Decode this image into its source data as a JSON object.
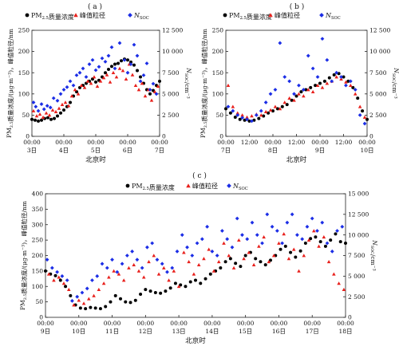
{
  "chart_data": [
    {
      "type": "scatter",
      "panel_label": "( a )",
      "xlabel": "北京时",
      "ylabel": "PM2.5质量浓度/(μg·m⁻³)，峰值粒径/nm",
      "ylabel_right": "N_SOC/cm⁻³",
      "x_tick_labels": [
        {
          "time": "00:00",
          "day": "3日"
        },
        {
          "time": "00:00",
          "day": "4日"
        },
        {
          "time": "00:00",
          "day": "5日"
        },
        {
          "time": "00:00",
          "day": "6日"
        },
        {
          "time": "00:00",
          "day": "7日"
        }
      ],
      "xlim": [
        0,
        4
      ],
      "ylim": [
        0,
        250
      ],
      "ylim_right": [
        0,
        12500
      ],
      "y_ticks": [
        0,
        50,
        100,
        150,
        200,
        250
      ],
      "y_ticks_right": [
        0,
        2500,
        5000,
        7500,
        10000,
        12500
      ],
      "y_tick_labels_right": [
        "0",
        "2 500",
        "5 000",
        "7 500",
        "10 000",
        "12 500"
      ],
      "legend": [
        {
          "label": "PM2.5质量浓度",
          "marker": "circle",
          "color": "#000000"
        },
        {
          "label": "峰值粒径",
          "marker": "triangle",
          "color": "#e8201c"
        },
        {
          "label": "N_SOC",
          "marker": "diamond",
          "color": "#1c2ee6"
        }
      ],
      "series": [
        {
          "name": "PM2.5质量浓度",
          "axis": "left",
          "x": [
            0.0,
            0.1,
            0.2,
            0.3,
            0.4,
            0.5,
            0.6,
            0.7,
            0.8,
            0.9,
            1.0,
            1.1,
            1.2,
            1.3,
            1.4,
            1.5,
            1.6,
            1.7,
            1.8,
            1.9,
            2.0,
            2.1,
            2.2,
            2.3,
            2.4,
            2.5,
            2.6,
            2.7,
            2.8,
            2.9,
            3.0,
            3.1,
            3.2,
            3.3,
            3.4,
            3.5,
            3.6,
            3.7,
            3.8,
            3.9,
            4.0
          ],
          "y": [
            40,
            38,
            36,
            38,
            42,
            44,
            40,
            42,
            48,
            55,
            62,
            70,
            80,
            95,
            105,
            115,
            120,
            125,
            130,
            135,
            128,
            132,
            140,
            150,
            158,
            165,
            170,
            172,
            178,
            182,
            180,
            175,
            168,
            155,
            140,
            125,
            110,
            100,
            108,
            120,
            130
          ]
        },
        {
          "name": "峰值粒径",
          "axis": "left",
          "x": [
            0.05,
            0.15,
            0.25,
            0.35,
            0.45,
            0.55,
            0.65,
            0.75,
            0.85,
            0.95,
            1.05,
            1.15,
            1.25,
            1.35,
            1.45,
            1.55,
            1.65,
            1.75,
            1.85,
            1.95,
            2.05,
            2.15,
            2.25,
            2.35,
            2.45,
            2.55,
            2.65,
            2.75,
            2.85,
            2.95,
            3.05,
            3.15,
            3.25,
            3.35,
            3.45,
            3.55,
            3.65,
            3.75,
            3.85,
            3.95
          ],
          "y": [
            60,
            48,
            52,
            45,
            55,
            50,
            62,
            58,
            66,
            75,
            80,
            72,
            95,
            110,
            100,
            120,
            115,
            130,
            125,
            140,
            118,
            130,
            138,
            145,
            128,
            150,
            140,
            160,
            155,
            135,
            170,
            145,
            120,
            110,
            125,
            95,
            110,
            85,
            105,
            118
          ]
        },
        {
          "name": "N_SOC",
          "axis": "right",
          "x": [
            0.05,
            0.12,
            0.2,
            0.3,
            0.38,
            0.48,
            0.58,
            0.68,
            0.8,
            0.9,
            1.0,
            1.1,
            1.2,
            1.3,
            1.4,
            1.5,
            1.6,
            1.7,
            1.8,
            1.9,
            2.0,
            2.1,
            2.2,
            2.3,
            2.4,
            2.5,
            2.6,
            2.75,
            2.9,
            3.0,
            3.1,
            3.2,
            3.3,
            3.4,
            3.5,
            3.6,
            3.7,
            3.8,
            3.9
          ],
          "y": [
            4000,
            3500,
            3000,
            3800,
            3200,
            3600,
            3400,
            4500,
            4200,
            5000,
            5500,
            5800,
            6500,
            6000,
            7200,
            7500,
            8000,
            7000,
            8500,
            9000,
            7800,
            8200,
            9200,
            8800,
            9500,
            10500,
            8000,
            11000,
            9000,
            7500,
            8500,
            10800,
            9500,
            6500,
            7200,
            8600,
            5500,
            6200,
            5000
          ]
        }
      ]
    },
    {
      "type": "scatter",
      "panel_label": "( b )",
      "xlabel": "北京时",
      "ylabel": "PM2.5质量浓度/(μg·m⁻³)，峰值粒径/nm",
      "ylabel_right": "N_SOC/cm⁻³",
      "x_tick_labels": [
        {
          "time": "00:00",
          "day": "7日"
        },
        {
          "time": "12:00",
          "day": ""
        },
        {
          "time": "00:00",
          "day": "8日"
        },
        {
          "time": "12:00",
          "day": ""
        },
        {
          "time": "00:00",
          "day": "9日"
        },
        {
          "time": "12:00",
          "day": ""
        },
        {
          "time": "00:00",
          "day": "10日"
        }
      ],
      "xlim": [
        0,
        3
      ],
      "ylim": [
        0,
        250
      ],
      "ylim_right": [
        0,
        12500
      ],
      "y_ticks": [
        0,
        50,
        100,
        150,
        200,
        250
      ],
      "y_ticks_right": [
        0,
        2500,
        5000,
        7500,
        10000,
        12500
      ],
      "y_tick_labels_right": [
        "0",
        "2 500",
        "5 000",
        "7 500",
        "10 000",
        "12 500"
      ],
      "legend": [
        {
          "label": "PM2.5质量浓度",
          "marker": "circle",
          "color": "#000000"
        },
        {
          "label": "峰值粒径",
          "marker": "triangle",
          "color": "#e8201c"
        },
        {
          "label": "N_SOC",
          "marker": "diamond",
          "color": "#1c2ee6"
        }
      ],
      "series": [
        {
          "name": "PM2.5质量浓度",
          "axis": "left",
          "x": [
            0.0,
            0.1,
            0.2,
            0.3,
            0.4,
            0.5,
            0.6,
            0.7,
            0.8,
            0.9,
            1.0,
            1.1,
            1.2,
            1.3,
            1.4,
            1.5,
            1.6,
            1.7,
            1.8,
            1.9,
            2.0,
            2.1,
            2.2,
            2.3,
            2.4,
            2.5,
            2.6,
            2.7,
            2.8,
            2.9,
            3.0
          ],
          "y": [
            65,
            55,
            45,
            40,
            38,
            36,
            38,
            42,
            48,
            55,
            60,
            65,
            70,
            75,
            85,
            95,
            105,
            110,
            115,
            120,
            125,
            130,
            138,
            145,
            148,
            140,
            130,
            115,
            90,
            60,
            40
          ]
        },
        {
          "name": "峰值粒径",
          "axis": "left",
          "x": [
            0.05,
            0.15,
            0.25,
            0.35,
            0.45,
            0.55,
            0.65,
            0.75,
            0.85,
            0.95,
            1.05,
            1.15,
            1.25,
            1.35,
            1.45,
            1.55,
            1.65,
            1.75,
            1.85,
            1.95,
            2.05,
            2.15,
            2.25,
            2.35,
            2.45,
            2.55,
            2.65,
            2.75,
            2.85,
            2.95
          ],
          "y": [
            120,
            70,
            55,
            50,
            45,
            48,
            52,
            50,
            58,
            62,
            70,
            65,
            80,
            90,
            85,
            100,
            95,
            110,
            105,
            120,
            115,
            125,
            130,
            140,
            135,
            128,
            120,
            100,
            70,
            45
          ]
        },
        {
          "name": "N_SOC",
          "axis": "right",
          "x": [
            0.05,
            0.15,
            0.25,
            0.35,
            0.45,
            0.55,
            0.65,
            0.75,
            0.85,
            0.95,
            1.05,
            1.15,
            1.25,
            1.35,
            1.45,
            1.55,
            1.65,
            1.75,
            1.85,
            1.95,
            2.05,
            2.15,
            2.25,
            2.35,
            2.45,
            2.55,
            2.65,
            2.75,
            2.85,
            2.95
          ],
          "y": [
            3500,
            3000,
            2500,
            2200,
            2000,
            1800,
            2500,
            3000,
            4000,
            5000,
            5500,
            11000,
            7000,
            6500,
            5000,
            6000,
            5500,
            9500,
            8000,
            7000,
            11500,
            9000,
            6500,
            7500,
            7000,
            6000,
            6500,
            5500,
            2500,
            1500
          ]
        }
      ]
    },
    {
      "type": "scatter",
      "panel_label": "( c )",
      "xlabel": "北京时",
      "ylabel": "PM2.5质量浓度/(μg·m⁻³)，峰值粒径/nm",
      "ylabel_right": "N_SOC/cm⁻³",
      "x_tick_labels": [
        {
          "time": "00:00",
          "day": "9日"
        },
        {
          "time": "00:00",
          "day": "10日"
        },
        {
          "time": "00:00",
          "day": "11日"
        },
        {
          "time": "00:00",
          "day": "12日"
        },
        {
          "time": "00:00",
          "day": "13日"
        },
        {
          "time": "00:00",
          "day": "14日"
        },
        {
          "time": "00:00",
          "day": "15日"
        },
        {
          "time": "00:00",
          "day": "16日"
        },
        {
          "time": "00:00",
          "day": "17日"
        },
        {
          "time": "00:00",
          "day": "18日"
        }
      ],
      "xlim": [
        0,
        9
      ],
      "ylim": [
        0,
        400
      ],
      "ylim_right": [
        0,
        15000
      ],
      "y_ticks": [
        0,
        50,
        100,
        150,
        200,
        250,
        300,
        350,
        400
      ],
      "y_ticks_right": [
        0,
        2500,
        5000,
        7500,
        10000,
        12500,
        15000
      ],
      "y_tick_labels_right": [
        "0",
        "2 500",
        "5 000",
        "7 500",
        "10 000",
        "12 500",
        "15 000"
      ],
      "legend": [
        {
          "label": "PM2.5质量浓度",
          "marker": "circle",
          "color": "#000000"
        },
        {
          "label": "峰值粒径",
          "marker": "triangle",
          "color": "#e8201c"
        },
        {
          "label": "N_SOC",
          "marker": "diamond",
          "color": "#1c2ee6"
        }
      ],
      "series": [
        {
          "name": "PM2.5质量浓度",
          "axis": "left",
          "x": [
            0.0,
            0.15,
            0.3,
            0.45,
            0.6,
            0.75,
            0.9,
            1.05,
            1.2,
            1.35,
            1.5,
            1.65,
            1.8,
            1.95,
            2.1,
            2.25,
            2.4,
            2.55,
            2.7,
            2.85,
            3.0,
            3.15,
            3.3,
            3.45,
            3.6,
            3.75,
            3.9,
            4.05,
            4.2,
            4.35,
            4.5,
            4.65,
            4.8,
            4.95,
            5.1,
            5.25,
            5.4,
            5.55,
            5.7,
            5.85,
            6.0,
            6.15,
            6.3,
            6.45,
            6.6,
            6.75,
            6.9,
            7.05,
            7.2,
            7.35,
            7.5,
            7.65,
            7.8,
            7.95,
            8.1,
            8.25,
            8.4,
            8.55,
            8.7,
            8.85,
            9.0
          ],
          "y": [
            150,
            140,
            135,
            120,
            100,
            70,
            40,
            30,
            28,
            32,
            30,
            28,
            35,
            50,
            70,
            60,
            50,
            48,
            55,
            75,
            90,
            85,
            80,
            78,
            85,
            95,
            110,
            105,
            100,
            115,
            120,
            110,
            125,
            140,
            150,
            160,
            180,
            190,
            175,
            165,
            200,
            210,
            190,
            180,
            170,
            185,
            200,
            220,
            230,
            210,
            195,
            215,
            240,
            255,
            260,
            245,
            230,
            250,
            270,
            245,
            240
          ]
        },
        {
          "name": "峰值粒径",
          "axis": "left",
          "x": [
            0.1,
            0.25,
            0.4,
            0.55,
            0.7,
            0.85,
            1.0,
            1.15,
            1.3,
            1.45,
            1.6,
            1.75,
            1.9,
            2.05,
            2.2,
            2.35,
            2.5,
            2.65,
            2.8,
            2.95,
            3.1,
            3.25,
            3.4,
            3.55,
            3.7,
            3.85,
            4.0,
            4.15,
            4.3,
            4.45,
            4.6,
            4.75,
            4.9,
            5.05,
            5.2,
            5.35,
            5.5,
            5.65,
            5.8,
            5.95,
            6.1,
            6.25,
            6.4,
            6.55,
            6.7,
            6.85,
            7.0,
            7.15,
            7.3,
            7.45,
            7.6,
            7.75,
            7.9,
            8.05,
            8.2,
            8.35,
            8.5,
            8.65,
            8.8,
            8.95
          ],
          "y": [
            140,
            120,
            130,
            110,
            90,
            40,
            55,
            45,
            60,
            70,
            90,
            110,
            130,
            150,
            140,
            120,
            160,
            170,
            150,
            130,
            180,
            200,
            140,
            160,
            120,
            150,
            100,
            210,
            180,
            140,
            170,
            190,
            220,
            150,
            180,
            240,
            200,
            160,
            250,
            190,
            210,
            170,
            230,
            260,
            180,
            200,
            240,
            270,
            190,
            220,
            150,
            200,
            250,
            280,
            230,
            260,
            180,
            140,
            110,
            90
          ]
        },
        {
          "name": "N_SOC",
          "axis": "right",
          "x": [
            0.05,
            0.2,
            0.35,
            0.5,
            0.65,
            0.8,
            0.95,
            1.1,
            1.25,
            1.4,
            1.55,
            1.7,
            1.85,
            2.0,
            2.15,
            2.3,
            2.45,
            2.6,
            2.75,
            2.9,
            3.05,
            3.2,
            3.35,
            3.5,
            3.65,
            3.8,
            3.95,
            4.1,
            4.25,
            4.4,
            4.55,
            4.7,
            4.85,
            5.0,
            5.15,
            5.3,
            5.45,
            5.6,
            5.75,
            5.9,
            6.05,
            6.2,
            6.35,
            6.5,
            6.65,
            6.8,
            6.95,
            7.1,
            7.25,
            7.4,
            7.55,
            7.7,
            7.85,
            8.0,
            8.15,
            8.3,
            8.45,
            8.6,
            8.75,
            8.9
          ],
          "y": [
            7000,
            6000,
            5500,
            5000,
            4500,
            2000,
            2500,
            3000,
            3500,
            4500,
            5000,
            6500,
            6000,
            7000,
            5500,
            6500,
            7500,
            8000,
            7000,
            6000,
            8500,
            9000,
            7000,
            6500,
            5500,
            6000,
            8000,
            10000,
            8500,
            7500,
            9000,
            9500,
            11000,
            8000,
            7500,
            10500,
            9500,
            8500,
            12000,
            10000,
            9500,
            11500,
            10000,
            9000,
            12500,
            11000,
            10500,
            9000,
            11500,
            12500,
            10000,
            9500,
            11000,
            12000,
            10500,
            11500,
            9000,
            8000,
            10500,
            11000
          ]
        }
      ]
    }
  ]
}
